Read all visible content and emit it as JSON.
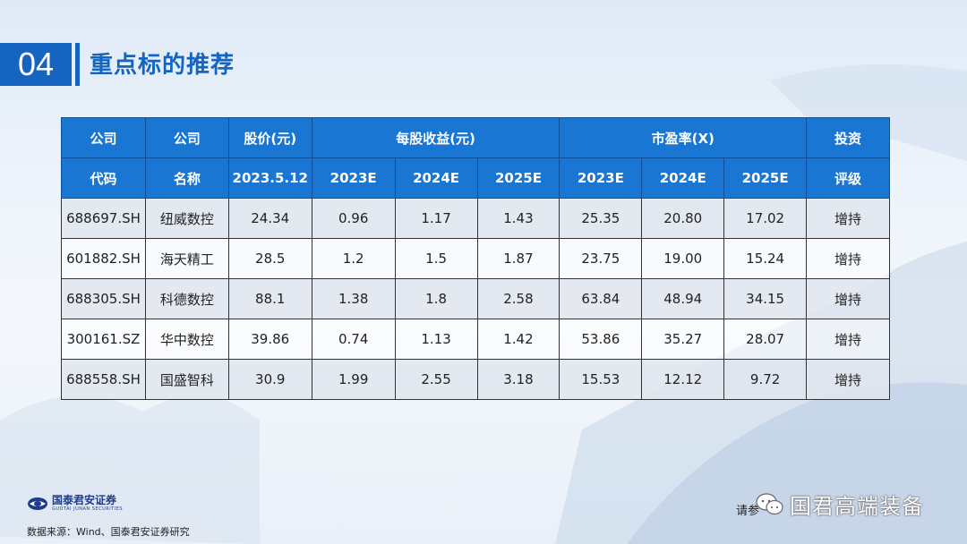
{
  "header": {
    "number": "04",
    "title": "重点标的推荐"
  },
  "table": {
    "head": {
      "code_l1": "公司",
      "code_l2": "代码",
      "name_l1": "公司",
      "name_l2": "名称",
      "price_l1": "股价(元)",
      "price_l2": "2023.5.12",
      "eps": "每股收益(元)",
      "pe": "市盈率(X)",
      "rating_l1": "投资",
      "rating_l2": "评级",
      "years": [
        "2023E",
        "2024E",
        "2025E"
      ]
    },
    "rows": [
      {
        "code": "688697.SH",
        "name": "纽威数控",
        "price": "24.34",
        "eps": [
          "0.96",
          "1.17",
          "1.43"
        ],
        "pe": [
          "25.35",
          "20.80",
          "17.02"
        ],
        "rating": "增持"
      },
      {
        "code": "601882.SH",
        "name": "海天精工",
        "price": "28.5",
        "eps": [
          "1.2",
          "1.5",
          "1.87"
        ],
        "pe": [
          "23.75",
          "19.00",
          "15.24"
        ],
        "rating": "增持"
      },
      {
        "code": "688305.SH",
        "name": "科德数控",
        "price": "88.1",
        "eps": [
          "1.38",
          "1.8",
          "2.58"
        ],
        "pe": [
          "63.84",
          "48.94",
          "34.15"
        ],
        "rating": "增持"
      },
      {
        "code": "300161.SZ",
        "name": "华中数控",
        "price": "39.86",
        "eps": [
          "0.74",
          "1.13",
          "1.42"
        ],
        "pe": [
          "53.86",
          "35.27",
          "28.07"
        ],
        "rating": "增持"
      },
      {
        "code": "688558.SH",
        "name": "国盛智科",
        "price": "30.9",
        "eps": [
          "1.99",
          "2.55",
          "3.18"
        ],
        "pe": [
          "15.53",
          "12.12",
          "9.72"
        ],
        "rating": "增持"
      }
    ]
  },
  "footer": {
    "logo_cn": "国泰君安证券",
    "logo_en": "GUOTAI JUNAN SECURITIES",
    "source": "数据来源：Wind、国泰君安证券研究",
    "notice": "请参",
    "watermark": "国君高端装备"
  },
  "colors": {
    "accent": "#1565c0",
    "header_bg": "#1976d2"
  },
  "icons": {
    "logo": "guotai-junan-logo",
    "wechat": "wechat-icon"
  }
}
